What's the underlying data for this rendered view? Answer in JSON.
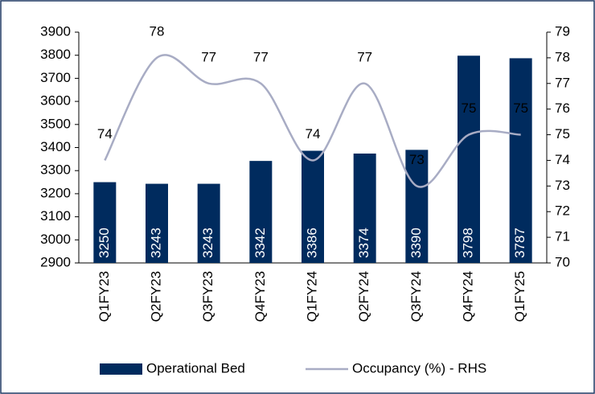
{
  "chart_data": {
    "type": "combo",
    "categories": [
      "Q1FY23",
      "Q2FY23",
      "Q3FY23",
      "Q4FY23",
      "Q1FY24",
      "Q2FY24",
      "Q3FY24",
      "Q4FY24",
      "Q1FY25"
    ],
    "series": [
      {
        "name": "Operational Bed",
        "type": "bar",
        "color": "#002b5e",
        "values": [
          3250,
          3243,
          3243,
          3342,
          3386,
          3374,
          3390,
          3798,
          3787
        ]
      },
      {
        "name": "Occupancy (%) - RHS",
        "type": "line",
        "axis": "y2",
        "color": "#a8acc4",
        "values": [
          74,
          78,
          77,
          77,
          74,
          77,
          73,
          75,
          75
        ]
      }
    ],
    "ylim": [
      2900,
      3900
    ],
    "yticks": [
      2900,
      3000,
      3100,
      3200,
      3300,
      3400,
      3500,
      3600,
      3700,
      3800,
      3900
    ],
    "y2lim": [
      70,
      79
    ],
    "y2ticks": [
      70,
      71,
      72,
      73,
      74,
      75,
      76,
      77,
      78,
      79
    ],
    "legend": "bottom"
  }
}
